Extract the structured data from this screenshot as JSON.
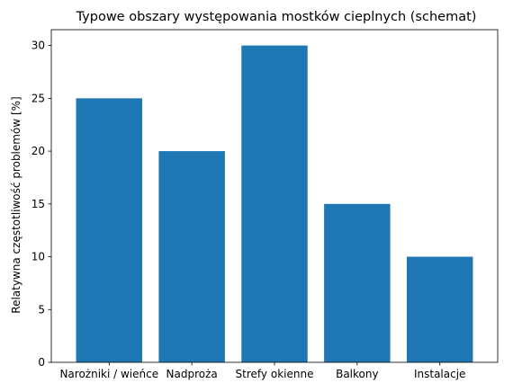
{
  "chart_data": {
    "type": "bar",
    "title": "Typowe obszary występowania mostków cieplnych (schemat)",
    "xlabel": "",
    "ylabel": "Relatywna częstotliwość problemów [%]",
    "categories": [
      "Narożniki / wieńce",
      "Nadproża",
      "Strefy okienne",
      "Balkony",
      "Instalacje"
    ],
    "values": [
      25,
      20,
      30,
      15,
      10
    ],
    "ylim": [
      0,
      31.5
    ],
    "yticks": [
      0,
      5,
      10,
      15,
      20,
      25,
      30
    ],
    "bar_color": "#1f77b4",
    "grid": false,
    "legend": "none"
  }
}
